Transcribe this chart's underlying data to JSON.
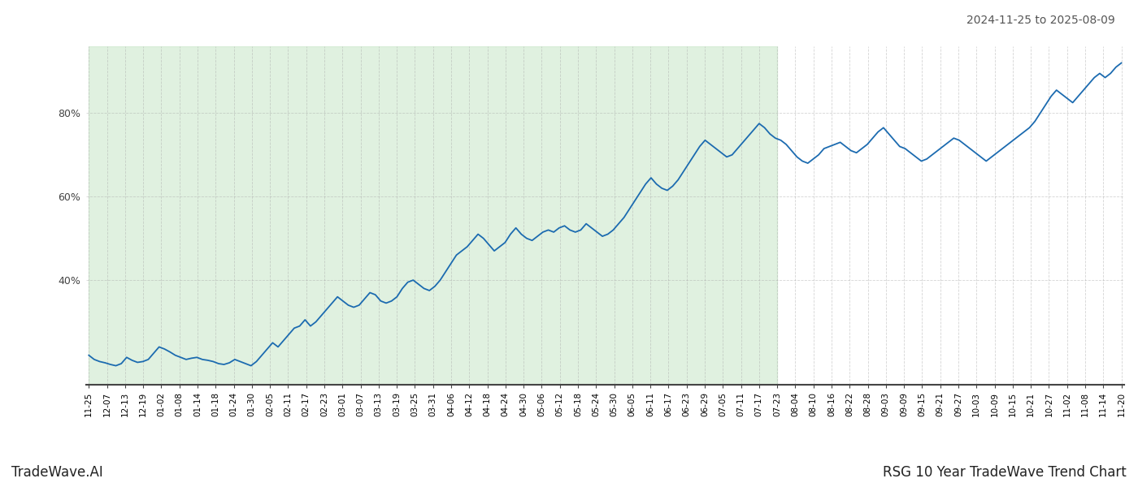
{
  "date_range_label": "2024-11-25 to 2025-08-09",
  "bottom_left_label": "TradeWave.AI",
  "bottom_right_label": "RSG 10 Year TradeWave Trend Chart",
  "line_color": "#1c6bb0",
  "line_width": 1.3,
  "shaded_color": "#c8e6c8",
  "shaded_alpha": 0.55,
  "background_color": "#ffffff",
  "grid_color": "#aaaaaa",
  "grid_alpha": 0.5,
  "ylim": [
    15,
    96
  ],
  "yticks": [
    40,
    60,
    80
  ],
  "x_labels": [
    "11-25",
    "12-07",
    "12-13",
    "12-19",
    "01-02",
    "01-08",
    "01-14",
    "01-18",
    "01-24",
    "01-30",
    "02-05",
    "02-11",
    "02-17",
    "02-23",
    "03-01",
    "03-07",
    "03-13",
    "03-19",
    "03-25",
    "03-31",
    "04-06",
    "04-12",
    "04-18",
    "04-24",
    "04-30",
    "05-06",
    "05-12",
    "05-18",
    "05-24",
    "05-30",
    "06-05",
    "06-11",
    "06-17",
    "06-23",
    "06-29",
    "07-05",
    "07-11",
    "07-17",
    "07-23",
    "08-04",
    "08-10",
    "08-16",
    "08-22",
    "08-28",
    "09-03",
    "09-09",
    "09-15",
    "09-21",
    "09-27",
    "10-03",
    "10-09",
    "10-15",
    "10-21",
    "10-27",
    "11-02",
    "11-08",
    "11-14",
    "11-20"
  ],
  "shaded_label_start": "11-25",
  "shaded_label_end": "07-23",
  "y_values": [
    22.0,
    21.0,
    20.5,
    20.2,
    19.8,
    19.5,
    20.0,
    21.5,
    20.8,
    20.3,
    20.5,
    21.0,
    22.5,
    24.0,
    23.5,
    22.8,
    22.0,
    21.5,
    21.0,
    21.3,
    21.5,
    21.0,
    20.8,
    20.5,
    20.0,
    19.8,
    20.2,
    21.0,
    20.5,
    20.0,
    19.5,
    20.5,
    22.0,
    23.5,
    25.0,
    24.0,
    25.5,
    27.0,
    28.5,
    29.0,
    30.5,
    29.0,
    30.0,
    31.5,
    33.0,
    34.5,
    36.0,
    35.0,
    34.0,
    33.5,
    34.0,
    35.5,
    37.0,
    36.5,
    35.0,
    34.5,
    35.0,
    36.0,
    38.0,
    39.5,
    40.0,
    39.0,
    38.0,
    37.5,
    38.5,
    40.0,
    42.0,
    44.0,
    46.0,
    47.0,
    48.0,
    49.5,
    51.0,
    50.0,
    48.5,
    47.0,
    48.0,
    49.0,
    51.0,
    52.5,
    51.0,
    50.0,
    49.5,
    50.5,
    51.5,
    52.0,
    51.5,
    52.5,
    53.0,
    52.0,
    51.5,
    52.0,
    53.5,
    52.5,
    51.5,
    50.5,
    51.0,
    52.0,
    53.5,
    55.0,
    57.0,
    59.0,
    61.0,
    63.0,
    64.5,
    63.0,
    62.0,
    61.5,
    62.5,
    64.0,
    66.0,
    68.0,
    70.0,
    72.0,
    73.5,
    72.5,
    71.5,
    70.5,
    69.5,
    70.0,
    71.5,
    73.0,
    74.5,
    76.0,
    77.5,
    76.5,
    75.0,
    74.0,
    73.5,
    72.5,
    71.0,
    69.5,
    68.5,
    68.0,
    69.0,
    70.0,
    71.5,
    72.0,
    72.5,
    73.0,
    72.0,
    71.0,
    70.5,
    71.5,
    72.5,
    74.0,
    75.5,
    76.5,
    75.0,
    73.5,
    72.0,
    71.5,
    70.5,
    69.5,
    68.5,
    69.0,
    70.0,
    71.0,
    72.0,
    73.0,
    74.0,
    73.5,
    72.5,
    71.5,
    70.5,
    69.5,
    68.5,
    69.5,
    70.5,
    71.5,
    72.5,
    73.5,
    74.5,
    75.5,
    76.5,
    78.0,
    80.0,
    82.0,
    84.0,
    85.5,
    84.5,
    83.5,
    82.5,
    84.0,
    85.5,
    87.0,
    88.5,
    89.5,
    88.5,
    89.5,
    91.0,
    92.0
  ]
}
